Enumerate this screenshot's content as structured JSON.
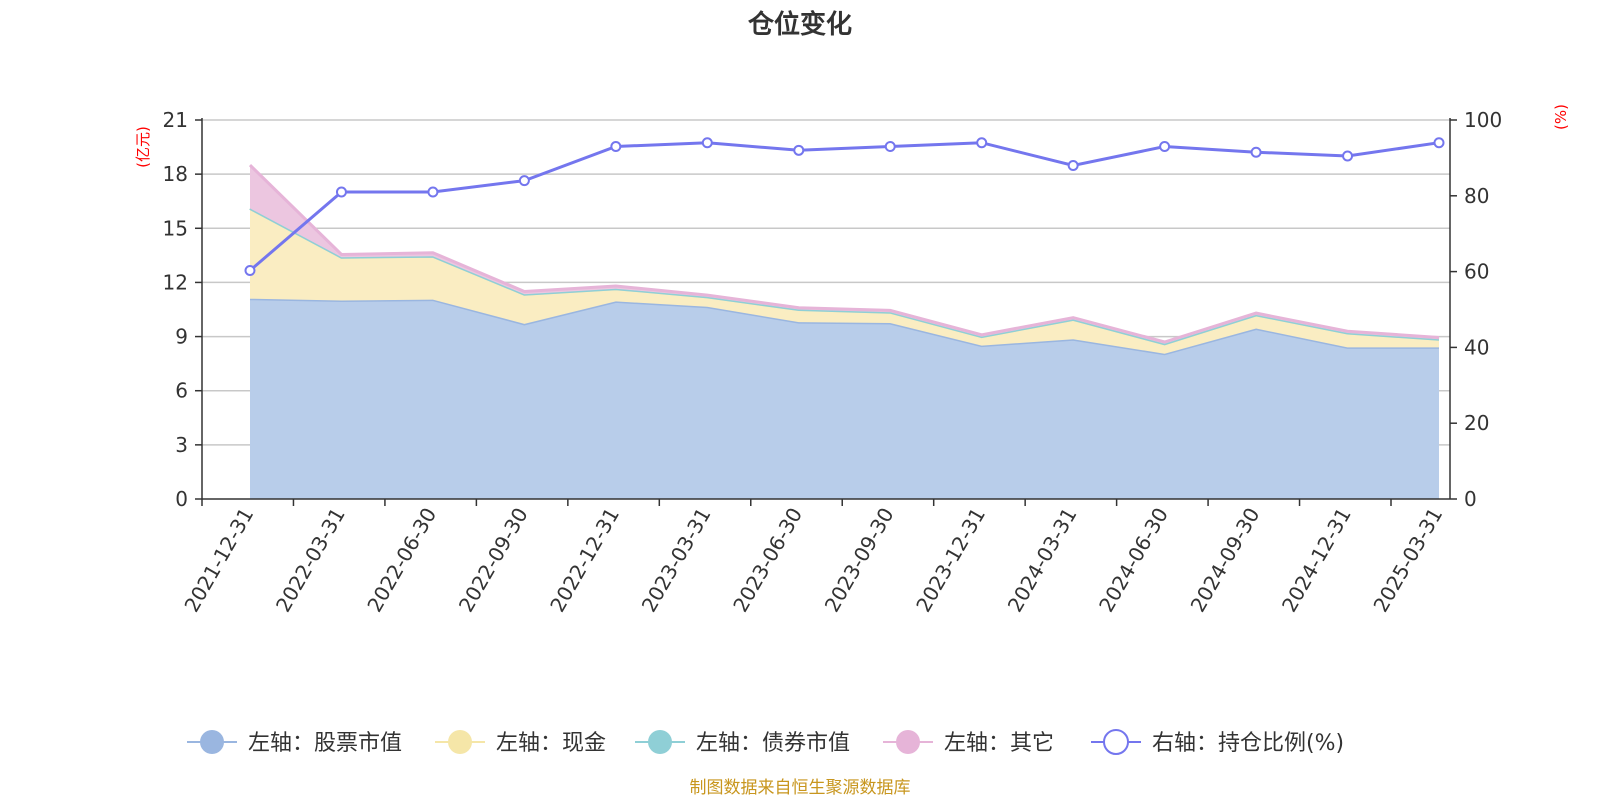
{
  "chart_data": {
    "type": "area",
    "title": "仓位变化",
    "x": [
      "2021-12-31",
      "2022-03-31",
      "2022-06-30",
      "2022-09-30",
      "2022-12-31",
      "2023-03-31",
      "2023-06-30",
      "2023-09-30",
      "2023-12-31",
      "2024-03-31",
      "2024-06-30",
      "2024-09-30",
      "2024-12-31",
      "2025-03-31"
    ],
    "y_left_label": "(亿元)",
    "y_right_label": "(%)",
    "y_left_lim": [
      0,
      21
    ],
    "y_left_ticks": [
      0,
      3,
      6,
      9,
      12,
      15,
      18,
      21
    ],
    "y_right_lim": [
      0,
      100
    ],
    "y_right_ticks": [
      0,
      20,
      40,
      60,
      80,
      100
    ],
    "grid": true,
    "legend_position": "bottom",
    "series": [
      {
        "name": "左轴：股票市值",
        "axis": "left",
        "kind": "stacked-area",
        "color": "#9ab6e0",
        "fill": "#b8cdea",
        "values": [
          11.1,
          11.0,
          11.05,
          9.7,
          10.95,
          10.65,
          9.8,
          9.75,
          8.5,
          8.85,
          8.05,
          9.45,
          8.4,
          8.4
        ]
      },
      {
        "name": "左轴：现金",
        "axis": "left",
        "kind": "stacked-area",
        "color": "#f5e6a8",
        "fill": "#faedc2",
        "values": [
          5.0,
          2.4,
          2.4,
          1.65,
          0.7,
          0.55,
          0.7,
          0.6,
          0.5,
          1.1,
          0.55,
          0.75,
          0.8,
          0.45
        ]
      },
      {
        "name": "左轴：债券市值",
        "axis": "left",
        "kind": "stacked-area",
        "color": "#8fcfd6",
        "fill": "#a8dce1",
        "values": [
          0,
          0,
          0,
          0,
          0,
          0,
          0,
          0,
          0,
          0,
          0,
          0,
          0,
          0
        ]
      },
      {
        "name": "左轴：其它",
        "axis": "left",
        "kind": "stacked-area",
        "color": "#e6b4d8",
        "fill": "#ecc6e0",
        "values": [
          2.4,
          0.15,
          0.2,
          0.15,
          0.15,
          0.1,
          0.1,
          0.1,
          0.1,
          0.1,
          0.1,
          0.1,
          0.1,
          0.1
        ]
      },
      {
        "name": "右轴：持仓比例(%)",
        "axis": "right",
        "kind": "line",
        "color": "#7476ee",
        "values": [
          60.3,
          81.0,
          81.0,
          84.0,
          93.0,
          94.0,
          92.0,
          93.0,
          94.0,
          88.0,
          93.0,
          91.5,
          90.5,
          94.0
        ]
      }
    ]
  },
  "footer": "制图数据来自恒生聚源数据库"
}
